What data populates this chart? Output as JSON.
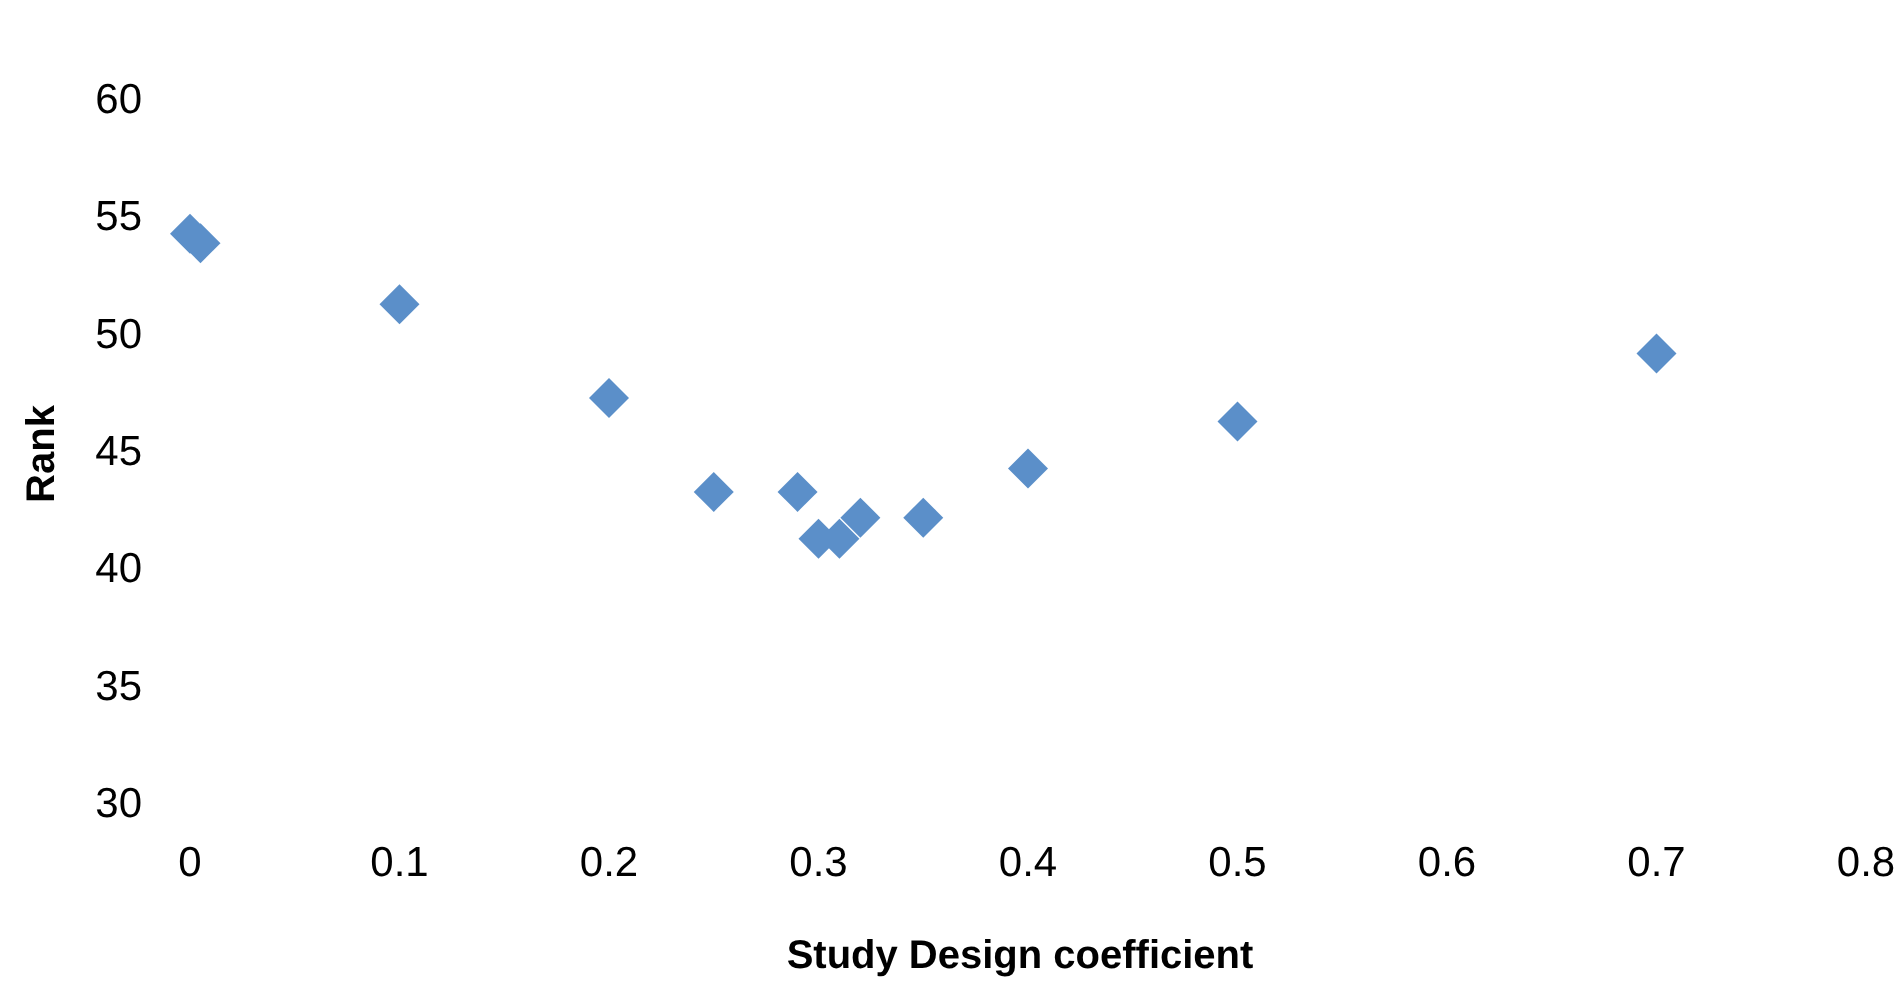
{
  "chart_data": {
    "type": "scatter",
    "xlabel": "Study Design coefficient",
    "ylabel": "Rank",
    "xlim": [
      0,
      0.8
    ],
    "xticks": [
      0,
      0.1,
      0.2,
      0.3,
      0.4,
      0.5,
      0.6,
      0.7,
      0.8
    ],
    "ylim": [
      30,
      60
    ],
    "yticks": [
      30,
      35,
      40,
      45,
      50,
      55,
      60
    ],
    "grid": false,
    "marker": "diamond",
    "series": [
      {
        "color": "#5b8fc9",
        "x": [
          0,
          0.005,
          0.1,
          0.2,
          0.25,
          0.29,
          0.3,
          0.31,
          0.32,
          0.35,
          0.4,
          0.5,
          0.7
        ],
        "values": [
          54.3,
          53.9,
          51.3,
          47.3,
          43.3,
          43.3,
          41.3,
          41.3,
          42.2,
          42.2,
          44.3,
          46.3,
          49.2
        ]
      }
    ]
  }
}
